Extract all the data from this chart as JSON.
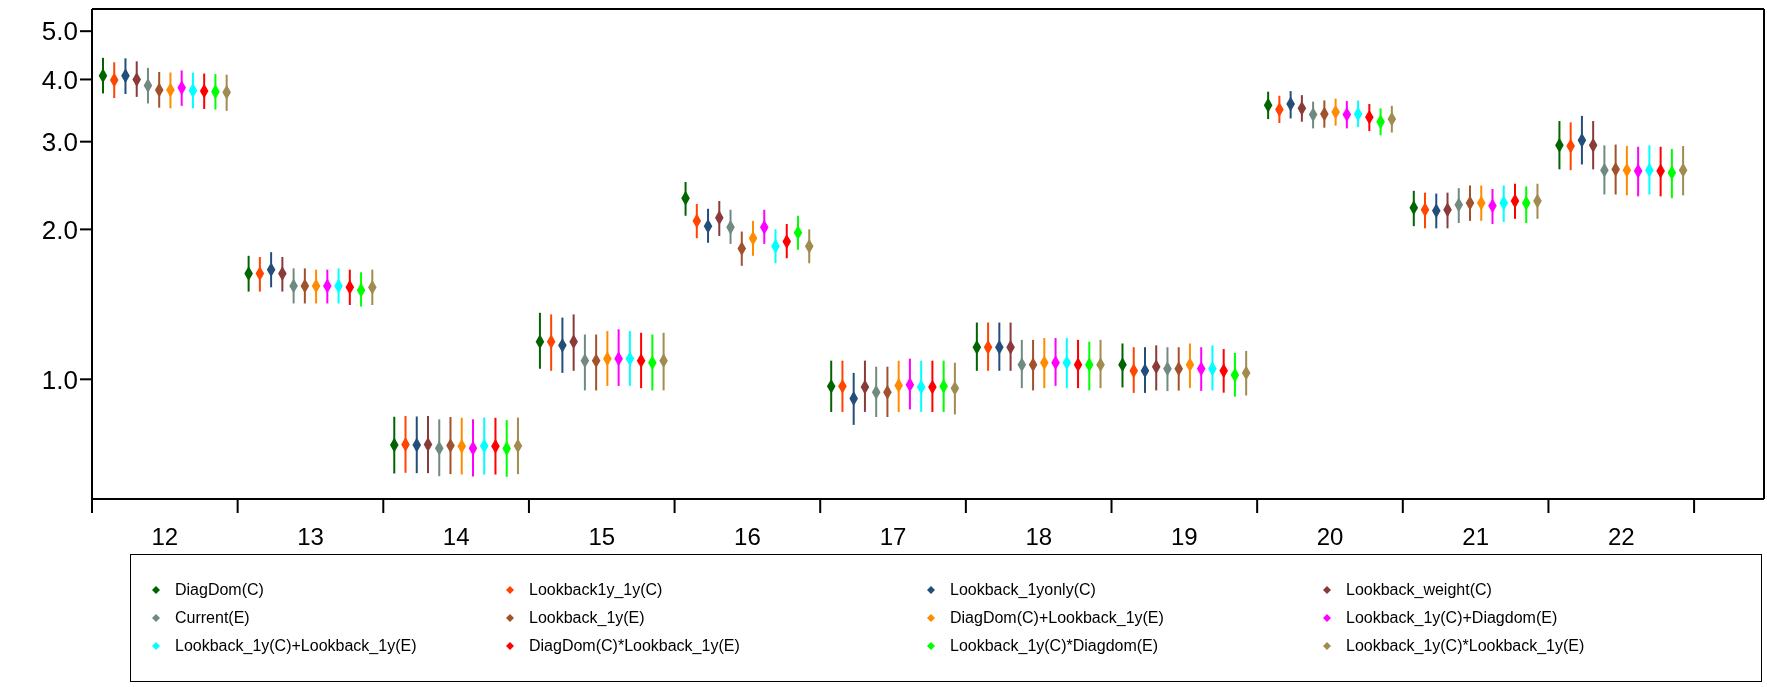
{
  "chart_data": {
    "type": "scatter",
    "categories": [
      "12",
      "13",
      "14",
      "15",
      "16",
      "17",
      "18",
      "19",
      "20",
      "21",
      "22"
    ],
    "ylim": [
      0.575,
      5.54
    ],
    "yticks": [
      {
        "value": 1,
        "label": "1.0"
      },
      {
        "value": 2,
        "label": "2.0"
      },
      {
        "value": 3,
        "label": "3.0"
      },
      {
        "value": 4,
        "label": "4.0"
      },
      {
        "value": 5,
        "label": "5.0"
      }
    ],
    "log": "y",
    "grid": false,
    "legend": "bottom",
    "marker": "diamond",
    "series": [
      {
        "name": "DiagDom(C)",
        "color": "#006400",
        "values": [
          4.07,
          1.63,
          0.738,
          1.19,
          2.31,
          0.968,
          1.16,
          1.07,
          3.55,
          2.21,
          2.95
        ],
        "errors": [
          [
            3.75,
            4.42
          ],
          [
            1.5,
            1.77
          ],
          [
            0.647,
            0.841
          ],
          [
            1.05,
            1.36
          ],
          [
            2.13,
            2.49
          ],
          [
            0.86,
            1.09
          ],
          [
            1.04,
            1.3
          ],
          [
            0.963,
            1.18
          ],
          [
            3.33,
            3.78
          ],
          [
            2.03,
            2.39
          ],
          [
            2.64,
            3.3
          ]
        ]
      },
      {
        "name": "Lookback1y_1y(C)",
        "color": "#ff4500",
        "values": [
          3.99,
          1.63,
          0.74,
          1.19,
          2.08,
          0.968,
          1.16,
          1.04,
          3.48,
          2.19,
          2.94
        ],
        "errors": [
          [
            3.67,
            4.33
          ],
          [
            1.5,
            1.76
          ],
          [
            0.649,
            0.844
          ],
          [
            1.04,
            1.35
          ],
          [
            1.92,
            2.25
          ],
          [
            0.86,
            1.09
          ],
          [
            1.04,
            1.3
          ],
          [
            0.939,
            1.16
          ],
          [
            3.27,
            3.71
          ],
          [
            2.01,
            2.37
          ],
          [
            2.63,
            3.28
          ]
        ]
      },
      {
        "name": "Lookback_1yonly(C)",
        "color": "#234e7a",
        "values": [
          4.07,
          1.66,
          0.738,
          1.17,
          2.03,
          0.915,
          1.16,
          1.04,
          3.57,
          2.18,
          3.02
        ],
        "errors": [
          [
            3.74,
            4.41
          ],
          [
            1.53,
            1.8
          ],
          [
            0.648,
            0.842
          ],
          [
            1.03,
            1.33
          ],
          [
            1.88,
            2.2
          ],
          [
            0.81,
            1.03
          ],
          [
            1.04,
            1.3
          ],
          [
            0.939,
            1.16
          ],
          [
            3.34,
            3.79
          ],
          [
            2.01,
            2.36
          ],
          [
            2.7,
            3.38
          ]
        ]
      },
      {
        "name": "Lookback_weight(C)",
        "color": "#8b3a3a",
        "values": [
          4.0,
          1.63,
          0.74,
          1.19,
          2.11,
          0.965,
          1.16,
          1.06,
          3.5,
          2.19,
          2.95
        ],
        "errors": [
          [
            3.69,
            4.35
          ],
          [
            1.5,
            1.76
          ],
          [
            0.648,
            0.844
          ],
          [
            1.04,
            1.35
          ],
          [
            1.94,
            2.28
          ],
          [
            0.86,
            1.09
          ],
          [
            1.04,
            1.3
          ],
          [
            0.95,
            1.17
          ],
          [
            3.29,
            3.72
          ],
          [
            2.01,
            2.37
          ],
          [
            2.64,
            3.3
          ]
        ]
      },
      {
        "name": "Current(E)",
        "color": "#708a80",
        "values": [
          3.89,
          1.54,
          0.727,
          1.09,
          2.02,
          0.942,
          1.07,
          1.05,
          3.4,
          2.24,
          2.63
        ],
        "errors": [
          [
            3.58,
            4.22
          ],
          [
            1.42,
            1.67
          ],
          [
            0.639,
            0.831
          ],
          [
            0.95,
            1.23
          ],
          [
            1.87,
            2.19
          ],
          [
            0.84,
            1.06
          ],
          [
            0.96,
            1.2
          ],
          [
            0.947,
            1.16
          ],
          [
            3.19,
            3.61
          ],
          [
            2.06,
            2.42
          ],
          [
            2.35,
            2.95
          ]
        ]
      },
      {
        "name": "Lookback_1y(E)",
        "color": "#a0522d",
        "values": [
          3.81,
          1.54,
          0.736,
          1.09,
          1.83,
          0.942,
          1.07,
          1.05,
          3.41,
          2.26,
          2.64
        ],
        "errors": [
          [
            3.51,
            4.14
          ],
          [
            1.42,
            1.67
          ],
          [
            0.645,
            0.84
          ],
          [
            0.95,
            1.23
          ],
          [
            1.69,
            1.98
          ],
          [
            0.84,
            1.06
          ],
          [
            0.95,
            1.2
          ],
          [
            0.949,
            1.16
          ],
          [
            3.2,
            3.63
          ],
          [
            2.08,
            2.45
          ],
          [
            2.35,
            2.96
          ]
        ]
      },
      {
        "name": "DiagDom(C)+Lookback_1y(E)",
        "color": "#ff8c00",
        "values": [
          3.81,
          1.54,
          0.734,
          1.1,
          1.92,
          0.972,
          1.08,
          1.07,
          3.44,
          2.26,
          2.63
        ],
        "errors": [
          [
            3.5,
            4.13
          ],
          [
            1.42,
            1.66
          ],
          [
            0.644,
            0.837
          ],
          [
            0.97,
            1.25
          ],
          [
            1.77,
            2.08
          ],
          [
            0.86,
            1.09
          ],
          [
            0.96,
            1.21
          ],
          [
            0.961,
            1.18
          ],
          [
            3.23,
            3.66
          ],
          [
            2.08,
            2.45
          ],
          [
            2.34,
            2.94
          ]
        ]
      },
      {
        "name": "Lookback_1y(C)+Diagdom(E)",
        "color": "#ff00ff",
        "values": [
          3.85,
          1.54,
          0.727,
          1.1,
          2.02,
          0.975,
          1.08,
          1.05,
          3.4,
          2.23,
          2.62
        ],
        "errors": [
          [
            3.54,
            4.17
          ],
          [
            1.42,
            1.66
          ],
          [
            0.638,
            0.831
          ],
          [
            0.97,
            1.26
          ],
          [
            1.87,
            2.19
          ],
          [
            0.87,
            1.1
          ],
          [
            0.97,
            1.21
          ],
          [
            0.948,
            1.16
          ],
          [
            3.19,
            3.62
          ],
          [
            2.05,
            2.41
          ],
          [
            2.33,
            2.93
          ]
        ]
      },
      {
        "name": "Lookback_1y(C)+Lookback_1y(E)",
        "color": "#00ffff",
        "values": [
          3.8,
          1.54,
          0.735,
          1.1,
          1.85,
          0.965,
          1.08,
          1.05,
          3.41,
          2.26,
          2.63
        ],
        "errors": [
          [
            3.5,
            4.13
          ],
          [
            1.42,
            1.67
          ],
          [
            0.644,
            0.838
          ],
          [
            0.97,
            1.25
          ],
          [
            1.71,
            2.0
          ],
          [
            0.86,
            1.09
          ],
          [
            0.96,
            1.21
          ],
          [
            0.95,
            1.17
          ],
          [
            3.21,
            3.63
          ],
          [
            2.07,
            2.45
          ],
          [
            2.35,
            2.95
          ]
        ]
      },
      {
        "name": "DiagDom(C)*Lookback_1y(E)",
        "color": "#ff0000",
        "values": [
          3.79,
          1.53,
          0.734,
          1.09,
          1.89,
          0.965,
          1.07,
          1.04,
          3.36,
          2.28,
          2.62
        ],
        "errors": [
          [
            3.49,
            4.11
          ],
          [
            1.41,
            1.66
          ],
          [
            0.644,
            0.837
          ],
          [
            0.96,
            1.24
          ],
          [
            1.75,
            2.05
          ],
          [
            0.86,
            1.09
          ],
          [
            0.96,
            1.2
          ],
          [
            0.94,
            1.15
          ],
          [
            3.15,
            3.57
          ],
          [
            2.1,
            2.47
          ],
          [
            2.33,
            2.93
          ]
        ]
      },
      {
        "name": "Lookback_1y(C)*Diagdom(E)",
        "color": "#00ff00",
        "values": [
          3.78,
          1.51,
          0.726,
          1.08,
          1.97,
          0.968,
          1.07,
          1.02,
          3.29,
          2.26,
          2.6
        ],
        "errors": [
          [
            3.48,
            4.1
          ],
          [
            1.4,
            1.64
          ],
          [
            0.637,
            0.828
          ],
          [
            0.95,
            1.23
          ],
          [
            1.82,
            2.13
          ],
          [
            0.86,
            1.09
          ],
          [
            0.95,
            1.19
          ],
          [
            0.923,
            1.13
          ],
          [
            3.09,
            3.5
          ],
          [
            2.06,
            2.44
          ],
          [
            2.31,
            2.9
          ]
        ]
      },
      {
        "name": "Lookback_1y(C)*Lookback_1y(E)",
        "color": "#a08c50",
        "values": [
          3.77,
          1.53,
          0.735,
          1.09,
          1.85,
          0.959,
          1.07,
          1.03,
          3.33,
          2.28,
          2.63
        ],
        "errors": [
          [
            3.46,
            4.09
          ],
          [
            1.41,
            1.66
          ],
          [
            0.645,
            0.838
          ],
          [
            0.95,
            1.24
          ],
          [
            1.71,
            2.0
          ],
          [
            0.85,
            1.08
          ],
          [
            0.96,
            1.2
          ],
          [
            0.928,
            1.14
          ],
          [
            3.13,
            3.54
          ],
          [
            2.1,
            2.47
          ],
          [
            2.34,
            2.94
          ]
        ]
      }
    ]
  }
}
